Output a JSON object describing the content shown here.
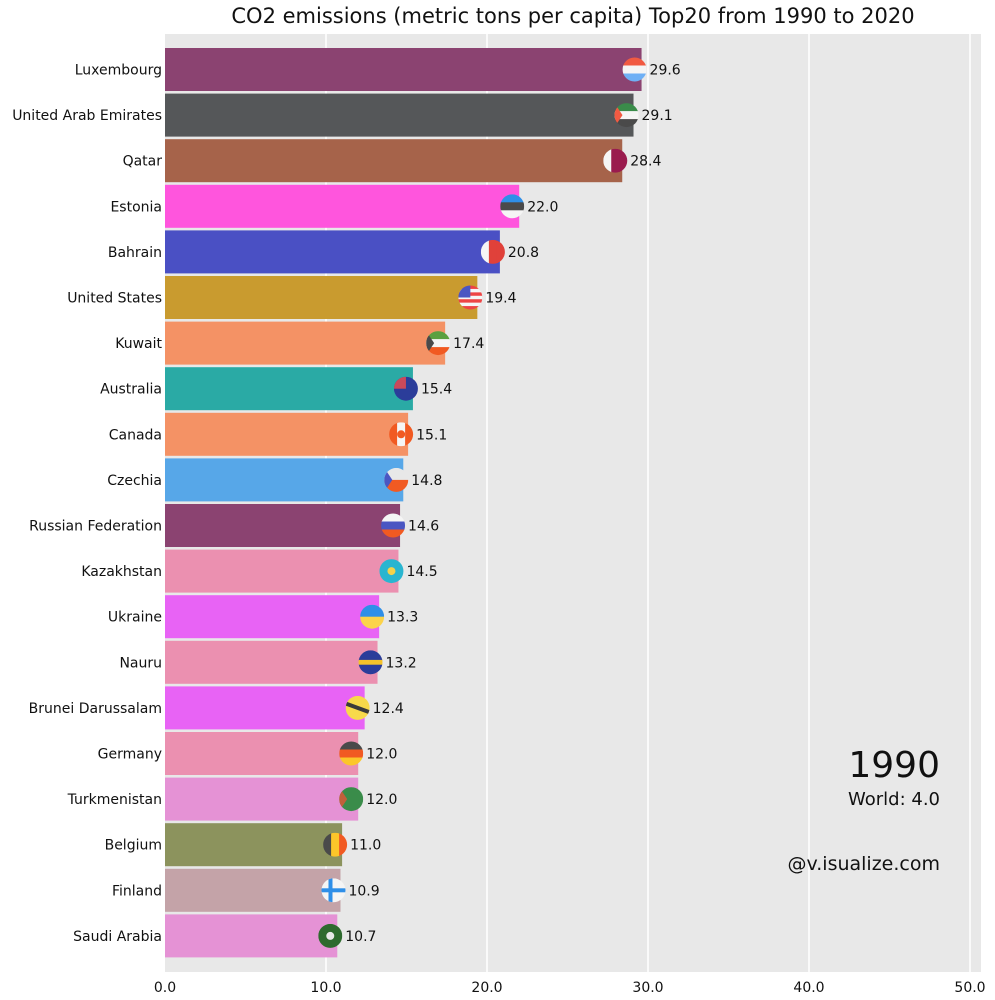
{
  "chart_data": {
    "type": "bar",
    "orientation": "horizontal",
    "title": "CO2 emissions (metric tons per capita) Top20 from 1990 to 2020",
    "xlabel": "",
    "ylabel": "",
    "xlim": [
      0,
      50
    ],
    "grid": true,
    "x_ticks": [
      "0.0",
      "10.0",
      "20.0",
      "30.0",
      "40.0",
      "50.0"
    ],
    "x_tick_values": [
      0,
      10,
      20,
      30,
      40,
      50
    ],
    "categories": [
      "Luxembourg",
      "United Arab Emirates",
      "Qatar",
      "Estonia",
      "Bahrain",
      "United States",
      "Kuwait",
      "Australia",
      "Canada",
      "Czechia",
      "Russian Federation",
      "Kazakhstan",
      "Ukraine",
      "Nauru",
      "Brunei Darussalam",
      "Germany",
      "Turkmenistan",
      "Belgium",
      "Finland",
      "Saudi Arabia"
    ],
    "values": [
      29.6,
      29.1,
      28.4,
      22.0,
      20.8,
      19.4,
      17.4,
      15.4,
      15.1,
      14.8,
      14.6,
      14.5,
      13.3,
      13.2,
      12.4,
      12.0,
      12.0,
      11.0,
      10.9,
      10.7
    ],
    "value_labels": [
      "29.6",
      "29.1",
      "28.4",
      "22.0",
      "20.8",
      "19.4",
      "17.4",
      "15.4",
      "15.1",
      "14.8",
      "14.6",
      "14.5",
      "13.3",
      "13.2",
      "12.4",
      "12.0",
      "12.0",
      "11.0",
      "10.9",
      "10.7"
    ],
    "colors": [
      "#8b4371",
      "#555759",
      "#a6634a",
      "#ff55dd",
      "#4a50c4",
      "#c99b2f",
      "#f49265",
      "#2aaaa5",
      "#f49265",
      "#57a7e8",
      "#8b4371",
      "#eb90b0",
      "#e863f5",
      "#eb90b0",
      "#e863f5",
      "#eb90b0",
      "#e592d5",
      "#8c935d",
      "#c4a3a8",
      "#e592d5"
    ],
    "flag_icons": [
      "flag-luxembourg-icon",
      "flag-uae-icon",
      "flag-qatar-icon",
      "flag-estonia-icon",
      "flag-bahrain-icon",
      "flag-united-states-icon",
      "flag-kuwait-icon",
      "flag-australia-icon",
      "flag-canada-icon",
      "flag-czechia-icon",
      "flag-russia-icon",
      "flag-kazakhstan-icon",
      "flag-ukraine-icon",
      "flag-nauru-icon",
      "flag-brunei-icon",
      "flag-germany-icon",
      "flag-turkmenistan-icon",
      "flag-belgium-icon",
      "flag-finland-icon",
      "flag-saudi-arabia-icon"
    ],
    "annotations": {
      "year": "1990",
      "world": "World: 4.0",
      "credit": "@v.isualize.com"
    },
    "background_color": "#e8e8e8",
    "grid_color": "#ffffff"
  }
}
